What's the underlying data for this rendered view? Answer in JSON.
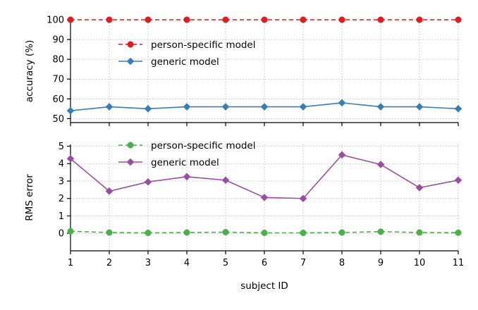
{
  "chart_data": [
    {
      "type": "line",
      "ylabel": "accuracy (%)",
      "xlabel": "",
      "ylim": [
        48,
        100
      ],
      "yticks": [
        50,
        60,
        70,
        80,
        90,
        100
      ],
      "xlim": [
        1,
        11
      ],
      "x": [
        1,
        2,
        3,
        4,
        5,
        6,
        7,
        8,
        9,
        10,
        11
      ],
      "grid": true,
      "legend": "upper-left",
      "series": [
        {
          "name": "person-specific model",
          "values": [
            100,
            100,
            100,
            100,
            100,
            100,
            100,
            100,
            100,
            100,
            100
          ],
          "color": "#e41a1c",
          "linestyle": "dashed",
          "marker": "circle"
        },
        {
          "name": "generic model",
          "values": [
            54,
            56,
            55,
            56,
            56,
            56,
            56,
            58,
            56,
            56,
            55
          ],
          "color": "#377eb8",
          "linestyle": "solid",
          "marker": "diamond"
        }
      ]
    },
    {
      "type": "line",
      "ylabel": "RMS error",
      "xlabel": "subject ID",
      "ylim": [
        -1,
        5.1
      ],
      "yticks": [
        0,
        1,
        2,
        3,
        4,
        5
      ],
      "xlim": [
        1,
        11
      ],
      "x": [
        1,
        2,
        3,
        4,
        5,
        6,
        7,
        8,
        9,
        10,
        11
      ],
      "xticks": [
        "1",
        "2",
        "3",
        "4",
        "5",
        "6",
        "7",
        "8",
        "9",
        "10",
        "11"
      ],
      "grid": true,
      "legend": "upper-left",
      "series": [
        {
          "name": "person-specific model",
          "values": [
            0.12,
            0.05,
            0.03,
            0.05,
            0.07,
            0.03,
            0.03,
            0.05,
            0.1,
            0.05,
            0.04
          ],
          "color": "#4daf4a",
          "linestyle": "dashed",
          "marker": "circle"
        },
        {
          "name": "generic model",
          "values": [
            4.28,
            2.42,
            2.95,
            3.25,
            3.05,
            2.06,
            2.0,
            4.5,
            3.95,
            2.62,
            3.05
          ],
          "color": "#984ea3",
          "linestyle": "solid",
          "marker": "diamond"
        }
      ]
    }
  ]
}
